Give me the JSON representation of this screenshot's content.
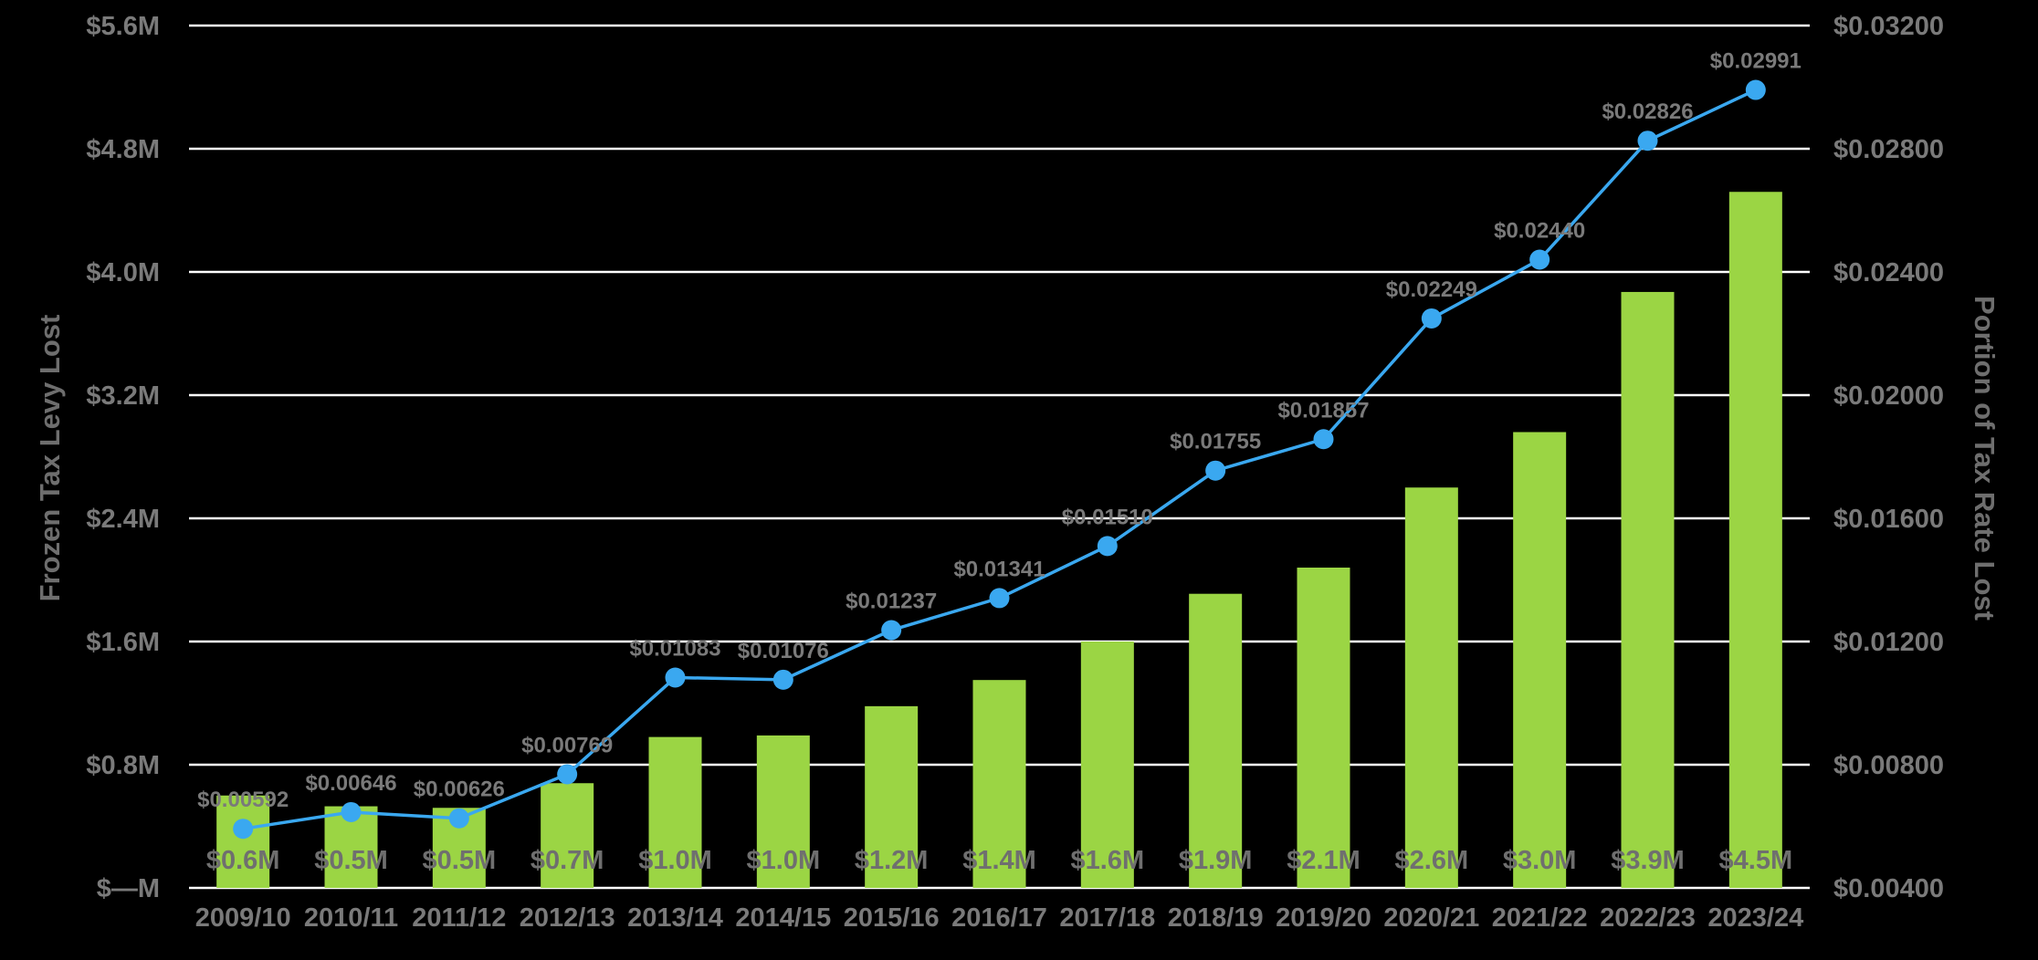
{
  "chart_data": {
    "type": "bar",
    "categories": [
      "2009/10",
      "2010/11",
      "2011/12",
      "2012/13",
      "2013/14",
      "2014/15",
      "2015/16",
      "2016/17",
      "2017/18",
      "2018/19",
      "2019/20",
      "2020/21",
      "2021/22",
      "2022/23",
      "2023/24"
    ],
    "series": [
      {
        "name": "",
        "chart_type": "bar",
        "axis": "left",
        "values": [
          0.6,
          0.53,
          0.52,
          0.68,
          0.98,
          0.99,
          1.18,
          1.35,
          1.6,
          1.91,
          2.08,
          2.6,
          2.96,
          3.87,
          4.52
        ],
        "labels": [
          "$0.6M",
          "$0.5M",
          "$0.5M",
          "$0.7M",
          "$1.0M",
          "$1.0M",
          "$1.2M",
          "$1.4M",
          "$1.6M",
          "$1.9M",
          "$2.1M",
          "$2.6M",
          "$3.0M",
          "$3.9M",
          "$4.5M"
        ],
        "color": "#9bd544"
      },
      {
        "name": "",
        "chart_type": "line",
        "axis": "right",
        "values": [
          0.00592,
          0.00646,
          0.00626,
          0.00769,
          0.01083,
          0.01076,
          0.01237,
          0.01341,
          0.0151,
          0.01755,
          0.01857,
          0.02249,
          0.0244,
          0.02826,
          0.02991
        ],
        "labels": [
          "$0.00592",
          "$0.00646",
          "$0.00626",
          "$0.00769",
          "$0.01083",
          "$0.01076",
          "$0.01237",
          "$0.01341",
          "$0.01510",
          "$0.01755",
          "$0.01857",
          "$0.02249",
          "$0.02440",
          "$0.02826",
          "$0.02991"
        ],
        "color": "#3aa8f0"
      }
    ],
    "y_left": {
      "label": "Frozen Tax Levy Lost",
      "ylim": [
        0,
        5.6
      ],
      "ticks": [
        0,
        0.8,
        1.6,
        2.4,
        3.2,
        4.0,
        4.8,
        5.6
      ],
      "tick_labels": [
        "$—M",
        "$0.8M",
        "$1.6M",
        "$2.4M",
        "$3.2M",
        "$4.0M",
        "$4.8M",
        "$5.6M"
      ]
    },
    "y_right": {
      "label": "Portion of Tax Rate Lost",
      "ylim": [
        0.004,
        0.032
      ],
      "ticks": [
        0.004,
        0.008,
        0.012,
        0.016,
        0.02,
        0.024,
        0.028,
        0.032
      ],
      "tick_labels": [
        "$0.00400",
        "$0.00800",
        "$0.01200",
        "$0.01600",
        "$0.02000",
        "$0.02400",
        "$0.02800",
        "$0.03200"
      ]
    },
    "grid": true,
    "colors": {
      "background": "#000000",
      "bars": "#9bd544",
      "line": "#3aa8f0",
      "gridline": "#ffffff",
      "text": "#7a7a7a"
    }
  }
}
